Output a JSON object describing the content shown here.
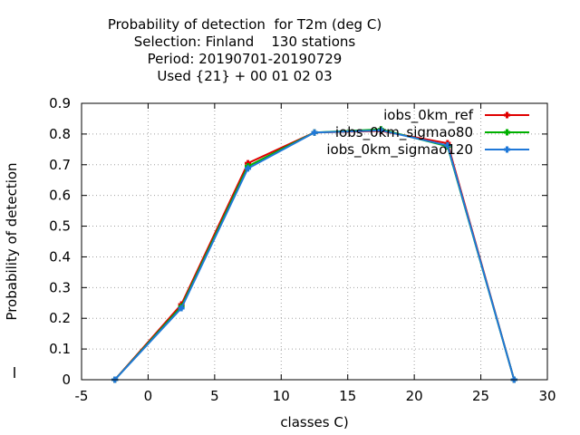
{
  "chart_data": {
    "type": "line",
    "title_lines": [
      "Probability of detection  for T2m (deg C)",
      "Selection: Finland    130 stations",
      "Period: 20190701-20190729",
      "Used {21} + 00 01 02 03"
    ],
    "xlabel": "classes C)",
    "ylabel": "Probability of detection",
    "xlim": [
      -5,
      30
    ],
    "ylim": [
      0,
      0.9
    ],
    "xticks": [
      -5,
      0,
      5,
      10,
      15,
      20,
      25,
      30
    ],
    "yticks": [
      0,
      0.1,
      0.2,
      0.3,
      0.4,
      0.5,
      0.6,
      0.7,
      0.8,
      0.9
    ],
    "grid": true,
    "legend_position": "top-right",
    "x": [
      -2.5,
      2.5,
      7.5,
      12.5,
      17.5,
      22.5,
      27.5
    ],
    "series": [
      {
        "name": "iobs_0km_ref",
        "color": "#e00000",
        "values": [
          0.0,
          0.245,
          0.705,
          0.805,
          0.81,
          0.77,
          0.0
        ]
      },
      {
        "name": "iobs_0km_sigmao80",
        "color": "#00b000",
        "values": [
          0.0,
          0.238,
          0.695,
          0.805,
          0.815,
          0.76,
          0.0
        ]
      },
      {
        "name": "iobs_0km_sigmao120",
        "color": "#1f78d8",
        "values": [
          0.0,
          0.233,
          0.688,
          0.805,
          0.812,
          0.763,
          0.0
        ]
      }
    ]
  }
}
